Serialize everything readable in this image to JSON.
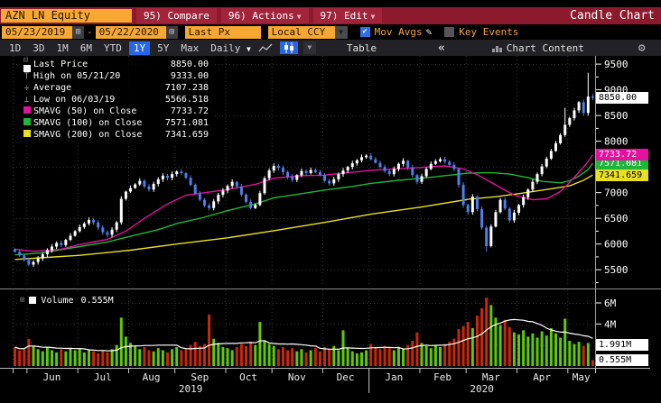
{
  "titlebar": {
    "symbol": "AZN LN Equity",
    "compare": "95) Compare",
    "actions": "96) Actions",
    "edit": "97) Edit",
    "title": "Candle Chart"
  },
  "controls": {
    "date_from": "05/23/2019",
    "date_sep": "-",
    "date_to": "05/22/2020",
    "price_type": "Last Px",
    "currency": "Local CCY",
    "mov_avgs": "Mov Avgs",
    "key_events": "Key Events"
  },
  "ranges": [
    {
      "label": "1D",
      "active": false
    },
    {
      "label": "3D",
      "active": false
    },
    {
      "label": "1M",
      "active": false
    },
    {
      "label": "6M",
      "active": false
    },
    {
      "label": "YTD",
      "active": false
    },
    {
      "label": "1Y",
      "active": true
    },
    {
      "label": "5Y",
      "active": false
    },
    {
      "label": "Max",
      "active": false
    }
  ],
  "period_label": "Daily",
  "actions_row": {
    "table": "Table",
    "collapse": "«",
    "chart_content": "Chart Content"
  },
  "legend": {
    "rows": [
      {
        "marker": "square-white",
        "label": "Last Price",
        "value": "8850.00"
      },
      {
        "marker": "high",
        "label": "High on 05/21/20",
        "value": "9333.00"
      },
      {
        "marker": "average",
        "label": "Average",
        "value": "7107.238"
      },
      {
        "marker": "low",
        "label": "Low on 06/03/19",
        "value": "5566.518"
      },
      {
        "marker": "square-magenta",
        "label": "SMAVG (50) on Close",
        "value": "7733.72"
      },
      {
        "marker": "square-green",
        "label": "SMAVG (100) on Close",
        "value": "7571.081"
      },
      {
        "marker": "square-yellow",
        "label": "SMAVG (200) on Close",
        "value": "7341.659"
      }
    ]
  },
  "volume_legend": {
    "label": "Volume",
    "value": "0.555M"
  },
  "price_tags": [
    {
      "text": "8850.00",
      "value": 8850.0,
      "bg": "#ffffff",
      "fg": "#000000"
    },
    {
      "text": "7733.72",
      "value": 7733.72,
      "bg": "#e3119e",
      "fg": "#ffffff"
    },
    {
      "text": "7571.081",
      "value": 7571.081,
      "bg": "#1eb53a",
      "fg": "#ffffff"
    },
    {
      "text": "7341.659",
      "value": 7341.659,
      "bg": "#e8e021",
      "fg": "#000000"
    }
  ],
  "volume_tags": [
    {
      "text": "1.991M",
      "value": 1.991
    },
    {
      "text": "0.555M",
      "value": 0.555
    }
  ],
  "chart_data": {
    "type": "candlestick",
    "symbol": "AZN LN Equity",
    "period": "Daily",
    "date_range": [
      "05/23/2019",
      "05/22/2020"
    ],
    "last_price": 8850.0,
    "high_point": {
      "date": "05/21/20",
      "value": 9333.0
    },
    "average": 7107.238,
    "low_point": {
      "date": "06/03/19",
      "value": 5566.518
    },
    "ylim": [
      5170,
      9660
    ],
    "grid": true,
    "legend_position": "top-left",
    "price_ticks": [
      {
        "v": 9500,
        "label": "9500"
      },
      {
        "v": 9000,
        "label": "9000"
      },
      {
        "v": 8500,
        "label": "8500"
      },
      {
        "v": 8000,
        "label": "8000"
      },
      {
        "v": 7500,
        "label": ""
      },
      {
        "v": 7000,
        "label": "7000"
      },
      {
        "v": 6500,
        "label": "6500"
      },
      {
        "v": 6000,
        "label": "6000"
      },
      {
        "v": 5500,
        "label": "5500"
      }
    ],
    "volume_ticks": [
      {
        "v": 6,
        "label": "6M"
      },
      {
        "v": 4,
        "label": "4M"
      },
      {
        "v": 2,
        "label": ""
      }
    ],
    "open_first": 5900,
    "closes": [
      5850,
      5780,
      5690,
      5600,
      5650,
      5720,
      5800,
      5880,
      5950,
      6020,
      5980,
      6080,
      6160,
      6250,
      6330,
      6400,
      6470,
      6420,
      6320,
      6230,
      6180,
      6280,
      6420,
      6880,
      7020,
      7090,
      7160,
      7230,
      7120,
      7060,
      7170,
      7260,
      7330,
      7290,
      7360,
      7410,
      7380,
      7290,
      7150,
      6980,
      6860,
      6750,
      6700,
      6830,
      6960,
      7040,
      7130,
      7210,
      7120,
      6960,
      6820,
      6700,
      6760,
      6990,
      7280,
      7430,
      7520,
      7480,
      7400,
      7310,
      7250,
      7340,
      7420,
      7380,
      7440,
      7400,
      7340,
      7230,
      7180,
      7260,
      7360,
      7430,
      7500,
      7570,
      7630,
      7690,
      7720,
      7650,
      7580,
      7500,
      7420,
      7360,
      7460,
      7560,
      7620,
      7490,
      7340,
      7210,
      7320,
      7460,
      7560,
      7610,
      7650,
      7600,
      7540,
      7460,
      7150,
      6760,
      6620,
      6920,
      6680,
      6320,
      5960,
      6340,
      6620,
      6860,
      6690,
      6460,
      6610,
      6760,
      6910,
      7060,
      7210,
      7360,
      7510,
      7660,
      7810,
      7960,
      8120,
      8320,
      8450,
      8600,
      8760,
      8550,
      8870,
      8850
    ],
    "wick_overrides": {
      "3": {
        "low": 5566.518
      },
      "102": {
        "low": 5850
      },
      "119": {
        "high": 8650
      },
      "124": {
        "high": 9333
      }
    },
    "volumes": [
      1.8,
      1.5,
      1.7,
      2.6,
      1.9,
      1.6,
      1.4,
      1.8,
      1.5,
      1.3,
      1.6,
      1.4,
      1.7,
      1.5,
      1.6,
      1.3,
      1.5,
      1.4,
      1.2,
      1.5,
      1.3,
      1.6,
      2.0,
      4.6,
      2.8,
      2.2,
      1.9,
      1.6,
      1.8,
      1.5,
      1.4,
      1.7,
      1.5,
      1.3,
      1.6,
      1.8,
      1.5,
      1.7,
      2.0,
      2.3,
      1.9,
      2.1,
      4.9,
      2.6,
      2.2,
      1.8,
      1.7,
      1.5,
      1.8,
      2.1,
      1.9,
      2.3,
      2.0,
      4.2,
      2.4,
      2.1,
      1.9,
      1.6,
      1.8,
      1.5,
      1.7,
      1.4,
      1.6,
      1.3,
      1.5,
      1.7,
      1.4,
      1.8,
      1.6,
      1.9,
      1.5,
      3.4,
      1.7,
      1.4,
      1.2,
      1.3,
      1.5,
      2.1,
      1.8,
      1.6,
      1.9,
      1.7,
      1.5,
      1.8,
      1.6,
      2.0,
      2.4,
      3.2,
      2.2,
      1.9,
      1.7,
      2.0,
      1.8,
      2.1,
      2.3,
      2.6,
      3.5,
      3.8,
      4.2,
      3.6,
      4.8,
      5.5,
      6.5,
      5.8,
      4.6,
      3.9,
      4.4,
      3.7,
      3.2,
      3.0,
      3.4,
      2.8,
      3.1,
      2.7,
      3.3,
      2.9,
      3.6,
      3.1,
      2.7,
      4.5,
      2.4,
      2.1,
      2.3,
      1.9,
      2.2,
      0.555
    ],
    "volume_ma_window": 13,
    "volume_ma_last": 1.991,
    "volume_last": 0.555,
    "sma50": {
      "name": "SMAVG (50) on Close",
      "last": 7733.72,
      "color": "#e3119e",
      "points": [
        [
          0,
          5900
        ],
        [
          4,
          5860
        ],
        [
          10,
          5900
        ],
        [
          14,
          5990
        ],
        [
          20,
          6090
        ],
        [
          24,
          6250
        ],
        [
          28,
          6500
        ],
        [
          33,
          6780
        ],
        [
          37,
          6950
        ],
        [
          42,
          7010
        ],
        [
          46,
          7060
        ],
        [
          52,
          7160
        ],
        [
          56,
          7280
        ],
        [
          62,
          7330
        ],
        [
          67,
          7340
        ],
        [
          72,
          7390
        ],
        [
          78,
          7440
        ],
        [
          84,
          7470
        ],
        [
          88,
          7490
        ],
        [
          93,
          7520
        ],
        [
          97,
          7460
        ],
        [
          100,
          7350
        ],
        [
          104,
          7150
        ],
        [
          108,
          6950
        ],
        [
          112,
          6860
        ],
        [
          115,
          6880
        ],
        [
          118,
          7020
        ],
        [
          120,
          7200
        ],
        [
          122,
          7400
        ],
        [
          124,
          7600
        ],
        [
          125,
          7734
        ]
      ]
    },
    "sma100": {
      "name": "SMAVG (100) on Close",
      "last": 7571.081,
      "color": "#1eb53a",
      "points": [
        [
          0,
          5790
        ],
        [
          6,
          5830
        ],
        [
          14,
          5950
        ],
        [
          20,
          6040
        ],
        [
          25,
          6150
        ],
        [
          31,
          6280
        ],
        [
          35,
          6400
        ],
        [
          41,
          6520
        ],
        [
          46,
          6650
        ],
        [
          52,
          6780
        ],
        [
          56,
          6900
        ],
        [
          62,
          6980
        ],
        [
          67,
          7050
        ],
        [
          73,
          7120
        ],
        [
          77,
          7180
        ],
        [
          83,
          7240
        ],
        [
          88,
          7280
        ],
        [
          94,
          7340
        ],
        [
          98,
          7380
        ],
        [
          103,
          7390
        ],
        [
          107,
          7360
        ],
        [
          111,
          7290
        ],
        [
          114,
          7220
        ],
        [
          118,
          7190
        ],
        [
          120,
          7230
        ],
        [
          122,
          7320
        ],
        [
          124,
          7450
        ],
        [
          125,
          7571
        ]
      ]
    },
    "sma200": {
      "name": "SMAVG (200) on Close",
      "last": 7341.659,
      "color": "#e8e021",
      "points": [
        [
          0,
          5700
        ],
        [
          7,
          5740
        ],
        [
          14,
          5780
        ],
        [
          25,
          5880
        ],
        [
          35,
          6000
        ],
        [
          46,
          6120
        ],
        [
          56,
          6260
        ],
        [
          67,
          6420
        ],
        [
          77,
          6580
        ],
        [
          88,
          6720
        ],
        [
          98,
          6870
        ],
        [
          104,
          6920
        ],
        [
          109,
          6980
        ],
        [
          115,
          7060
        ],
        [
          120,
          7130
        ],
        [
          123,
          7240
        ],
        [
          125,
          7342
        ]
      ]
    },
    "months": [
      {
        "label": "Jun",
        "start": 3
      },
      {
        "label": "Jul",
        "start": 14
      },
      {
        "label": "Aug",
        "start": 25
      },
      {
        "label": "Sep",
        "start": 35
      },
      {
        "label": "Oct",
        "start": 46
      },
      {
        "label": "Nov",
        "start": 56
      },
      {
        "label": "Dec",
        "start": 67
      },
      {
        "label": "Jan",
        "start": 77
      },
      {
        "label": "Feb",
        "start": 88
      },
      {
        "label": "Mar",
        "start": 98
      },
      {
        "label": "Apr",
        "start": 109
      },
      {
        "label": "May",
        "start": 120
      }
    ],
    "years": [
      {
        "label": "2019",
        "center": 38.5
      },
      {
        "label": "2020",
        "center": 101.5
      }
    ],
    "colors": {
      "candle_up": "#ffffff",
      "candle_down": "#4d7fe6",
      "volume_up": "#5fc80c",
      "volume_down": "#c8280a",
      "volume_ma": "#ffffff",
      "grid": "#3a3a42",
      "axis_text": "#ffffff"
    }
  }
}
